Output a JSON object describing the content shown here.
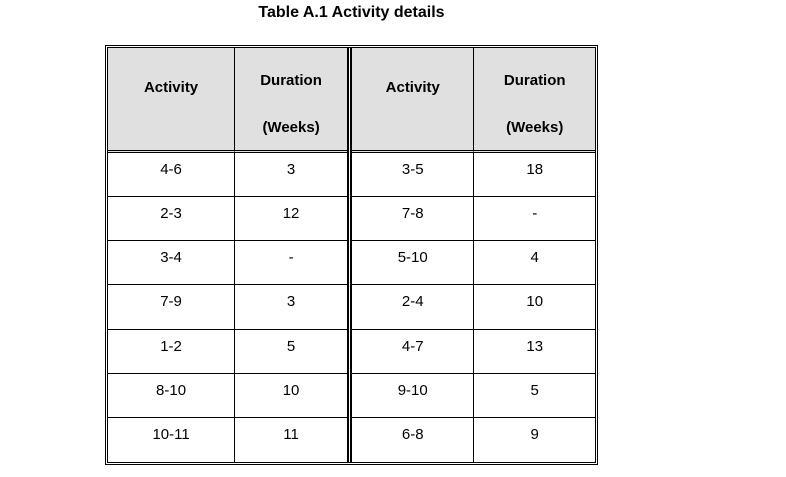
{
  "caption": "Table A.1 Activity details",
  "colors": {
    "page_bg": "#ffffff",
    "header_bg": "#e0e0e0",
    "border": "#000000"
  },
  "table": {
    "headers": {
      "activity": "Activity",
      "duration_line1": "Duration",
      "duration_line2": "(Weeks)"
    },
    "left_rows": [
      {
        "activity": "4-6",
        "duration": "3"
      },
      {
        "activity": "2-3",
        "duration": "12"
      },
      {
        "activity": "3-4",
        "duration": "-"
      },
      {
        "activity": "7-9",
        "duration": "3"
      },
      {
        "activity": "1-2",
        "duration": "5"
      },
      {
        "activity": "8-10",
        "duration": "10"
      },
      {
        "activity": "10-11",
        "duration": "11"
      }
    ],
    "right_rows": [
      {
        "activity": "3-5",
        "duration": "18"
      },
      {
        "activity": "7-8",
        "duration": "-"
      },
      {
        "activity": "5-10",
        "duration": "4"
      },
      {
        "activity": "2-4",
        "duration": "10"
      },
      {
        "activity": "4-7",
        "duration": "13"
      },
      {
        "activity": "9-10",
        "duration": "5"
      },
      {
        "activity": "6-8",
        "duration": "9"
      }
    ]
  }
}
